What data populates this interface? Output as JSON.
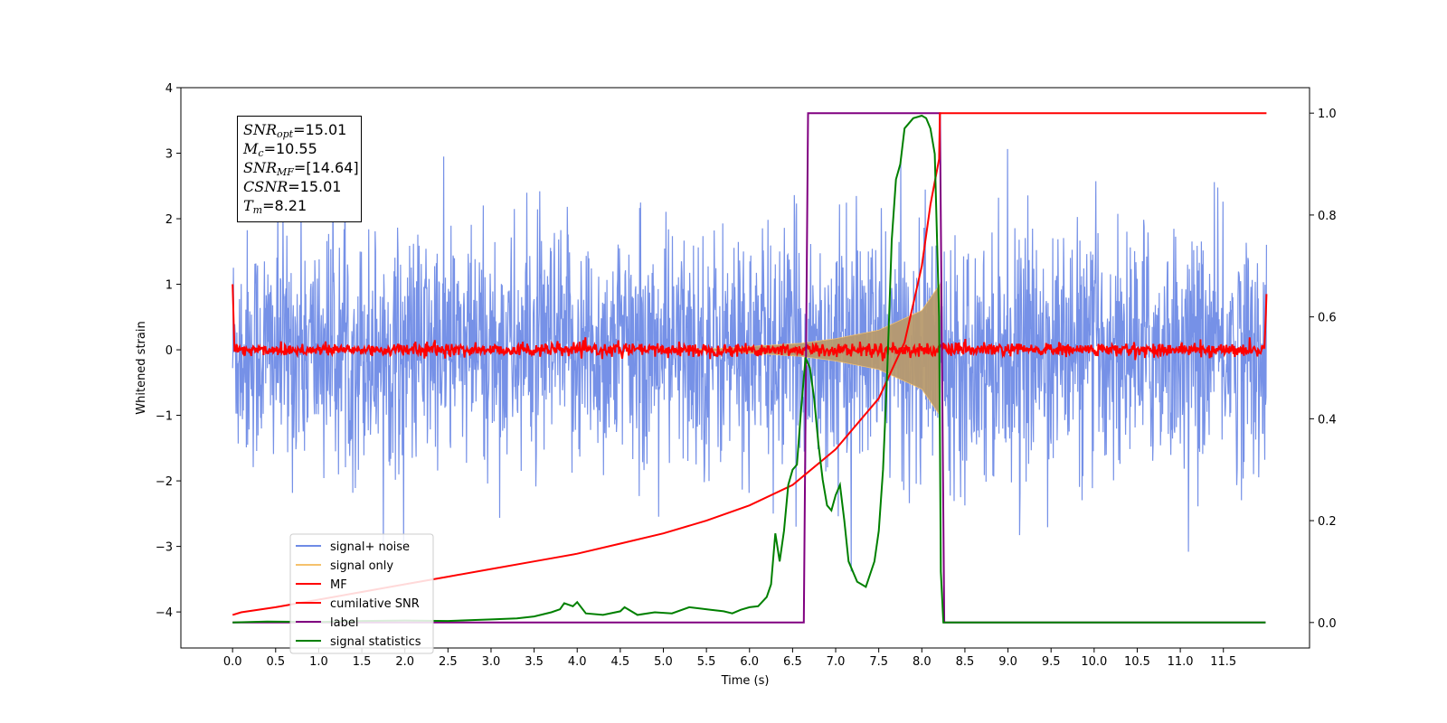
{
  "chart_data": {
    "type": "line",
    "xlabel": "Time (s)",
    "ylabel": "Whitened strain",
    "y2label": "",
    "xlim": [
      -0.6,
      12.5
    ],
    "ylim": [
      -4.55,
      4.0
    ],
    "y2lim": [
      -0.05,
      1.05
    ],
    "xticks": [
      "0.0",
      "0.5",
      "1.0",
      "1.5",
      "2.0",
      "2.5",
      "3.0",
      "3.5",
      "4.0",
      "4.5",
      "5.0",
      "5.5",
      "6.0",
      "6.5",
      "7.0",
      "7.5",
      "8.0",
      "8.5",
      "9.0",
      "9.5",
      "10.0",
      "10.5",
      "11.0",
      "11.5"
    ],
    "yticks": [
      "4",
      "3",
      "2",
      "1",
      "0",
      "−1",
      "−2",
      "−3",
      "−4"
    ],
    "y2ticks": [
      "1.0",
      "0.8",
      "0.6",
      "0.4",
      "0.2",
      "0.0"
    ],
    "grid": false,
    "legend_position": "lower-left",
    "colors": {
      "signal_noise": "#6f8be6",
      "signal_only": "#f5c16c",
      "signal_fill": "#b89a6e",
      "mf": "#ff0000",
      "cumulative_snr": "#ff0000",
      "label": "#800080",
      "signal_statistics": "#008000"
    },
    "series": [
      {
        "name": "signal+ noise",
        "axis": "left",
        "x_range": [
          0.0,
          12.0
        ],
        "noise_sigma": 0.9,
        "peak_values": [
          3.62,
          -4.1
        ]
      },
      {
        "name": "signal only",
        "axis": "left",
        "x_range": [
          0.0,
          8.21
        ],
        "envelope": [
          [
            6.0,
            0.05
          ],
          [
            6.6,
            0.1
          ],
          [
            7.0,
            0.17
          ],
          [
            7.5,
            0.3
          ],
          [
            8.0,
            0.6
          ],
          [
            8.21,
            1.0
          ]
        ]
      },
      {
        "name": "MF",
        "axis": "left",
        "x_range": [
          0.0,
          12.0
        ],
        "noise_sigma": 0.05,
        "edge_values": [
          1.0,
          0.85
        ]
      },
      {
        "name": "cumilative SNR",
        "axis": "right",
        "points": [
          [
            0.0,
            0.015
          ],
          [
            0.1,
            0.02
          ],
          [
            0.5,
            0.03
          ],
          [
            1.0,
            0.045
          ],
          [
            1.5,
            0.06
          ],
          [
            2.0,
            0.075
          ],
          [
            2.5,
            0.09
          ],
          [
            3.0,
            0.105
          ],
          [
            3.5,
            0.12
          ],
          [
            4.0,
            0.135
          ],
          [
            4.5,
            0.155
          ],
          [
            5.0,
            0.175
          ],
          [
            5.5,
            0.2
          ],
          [
            6.0,
            0.23
          ],
          [
            6.5,
            0.27
          ],
          [
            7.0,
            0.34
          ],
          [
            7.5,
            0.44
          ],
          [
            7.8,
            0.55
          ],
          [
            8.0,
            0.7
          ],
          [
            8.1,
            0.82
          ],
          [
            8.2,
            0.91
          ],
          [
            8.21,
            1.0
          ],
          [
            12.0,
            1.0
          ]
        ]
      },
      {
        "name": "label",
        "axis": "right",
        "points": [
          [
            0.0,
            0.0
          ],
          [
            6.63,
            0.0
          ],
          [
            6.68,
            1.0
          ],
          [
            8.21,
            1.0
          ],
          [
            8.26,
            0.0
          ],
          [
            11.99,
            0.0
          ]
        ]
      },
      {
        "name": "signal statistics",
        "axis": "right",
        "points": [
          [
            0.0,
            0.0
          ],
          [
            0.4,
            0.002
          ],
          [
            1.0,
            0.001
          ],
          [
            1.5,
            0.003
          ],
          [
            2.0,
            0.004
          ],
          [
            2.5,
            0.003
          ],
          [
            3.0,
            0.006
          ],
          [
            3.3,
            0.008
          ],
          [
            3.5,
            0.012
          ],
          [
            3.7,
            0.02
          ],
          [
            3.8,
            0.026
          ],
          [
            3.85,
            0.038
          ],
          [
            3.95,
            0.032
          ],
          [
            4.0,
            0.04
          ],
          [
            4.1,
            0.018
          ],
          [
            4.3,
            0.015
          ],
          [
            4.5,
            0.022
          ],
          [
            4.55,
            0.03
          ],
          [
            4.7,
            0.015
          ],
          [
            4.9,
            0.02
          ],
          [
            5.1,
            0.018
          ],
          [
            5.3,
            0.03
          ],
          [
            5.4,
            0.028
          ],
          [
            5.55,
            0.025
          ],
          [
            5.7,
            0.022
          ],
          [
            5.8,
            0.018
          ],
          [
            5.9,
            0.025
          ],
          [
            6.0,
            0.03
          ],
          [
            6.1,
            0.032
          ],
          [
            6.2,
            0.05
          ],
          [
            6.25,
            0.075
          ],
          [
            6.3,
            0.175
          ],
          [
            6.35,
            0.12
          ],
          [
            6.4,
            0.18
          ],
          [
            6.45,
            0.27
          ],
          [
            6.5,
            0.3
          ],
          [
            6.55,
            0.31
          ],
          [
            6.6,
            0.42
          ],
          [
            6.65,
            0.52
          ],
          [
            6.7,
            0.5
          ],
          [
            6.75,
            0.44
          ],
          [
            6.8,
            0.35
          ],
          [
            6.85,
            0.28
          ],
          [
            6.9,
            0.23
          ],
          [
            6.95,
            0.22
          ],
          [
            7.0,
            0.25
          ],
          [
            7.05,
            0.27
          ],
          [
            7.1,
            0.2
          ],
          [
            7.15,
            0.12
          ],
          [
            7.25,
            0.08
          ],
          [
            7.35,
            0.07
          ],
          [
            7.45,
            0.12
          ],
          [
            7.5,
            0.18
          ],
          [
            7.55,
            0.3
          ],
          [
            7.6,
            0.5
          ],
          [
            7.65,
            0.75
          ],
          [
            7.7,
            0.87
          ],
          [
            7.75,
            0.9
          ],
          [
            7.8,
            0.97
          ],
          [
            7.9,
            0.99
          ],
          [
            8.0,
            0.995
          ],
          [
            8.05,
            0.99
          ],
          [
            8.1,
            0.97
          ],
          [
            8.15,
            0.92
          ],
          [
            8.2,
            0.6
          ],
          [
            8.22,
            0.1
          ],
          [
            8.25,
            0.0
          ],
          [
            11.99,
            0.0
          ]
        ]
      }
    ],
    "annotation": [
      {
        "sym": "SNR",
        "sub": "opt",
        "val": "=15.01"
      },
      {
        "sym": "M",
        "sub": "c",
        "val": "=10.55"
      },
      {
        "sym": "SNR",
        "sub": "MF",
        "val": "=[14.64]"
      },
      {
        "sym": "CSNR",
        "sub": "",
        "val": "=15.01"
      },
      {
        "sym": "T",
        "sub": "m",
        "val": "=8.21"
      }
    ]
  }
}
